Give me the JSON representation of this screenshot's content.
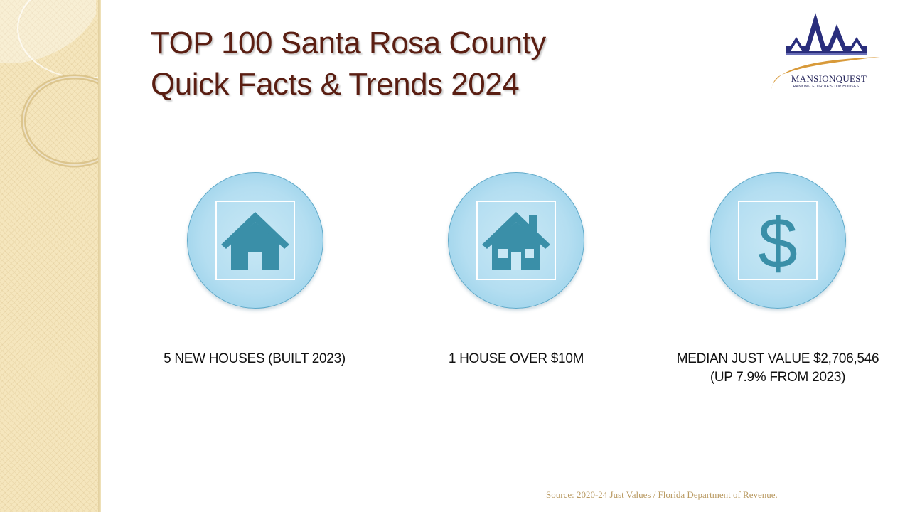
{
  "title": {
    "line1": "TOP 100 Santa Rosa County",
    "line2": "Quick Facts & Trends 2024"
  },
  "logo": {
    "name": "MANSIONQUEST",
    "tagline": "RANKING FLORIDA'S TOP HOUSES",
    "colors": {
      "roof": "#2a2e7c",
      "swoosh": "#d89a3a"
    }
  },
  "facts": [
    {
      "icon": "house-icon",
      "line1": "5 NEW HOUSES (BUILT 2023)",
      "line2": ""
    },
    {
      "icon": "house-with-windows-icon",
      "line1": "1 HOUSE OVER $10M",
      "line2": ""
    },
    {
      "icon": "dollar-sign-icon",
      "line1": "MEDIAN JUST VALUE $2,706,546",
      "line2": "(UP 7.9% FROM 2023)"
    }
  ],
  "colors": {
    "title": "#5a1e12",
    "icon": "#3a8fa8",
    "circle": "#b4def1",
    "source": "#b99a62"
  },
  "source": "Source: 2020-24 Just Values / Florida Department of Revenue."
}
